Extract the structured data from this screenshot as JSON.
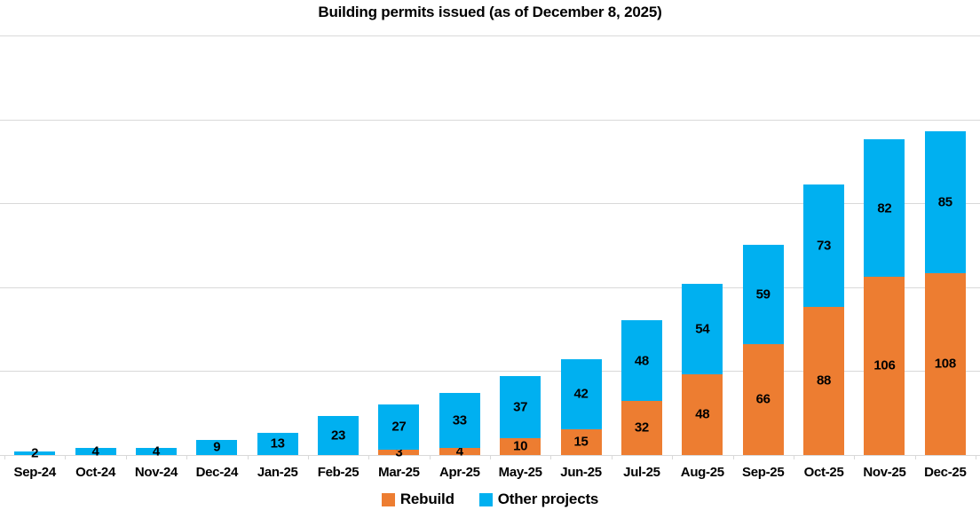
{
  "chart_data": {
    "type": "bar",
    "stacked": true,
    "title": "Building permits issued (as of December 8, 2025)",
    "categories": [
      "Sep-24",
      "Oct-24",
      "Nov-24",
      "Dec-24",
      "Jan-25",
      "Feb-25",
      "Mar-25",
      "Apr-25",
      "May-25",
      "Jun-25",
      "Jul-25",
      "Aug-25",
      "Sep-25",
      "Oct-25",
      "Nov-25",
      "Dec-25"
    ],
    "series": [
      {
        "name": "Rebuild",
        "color": "#ED7D31",
        "values": [
          0,
          0,
          0,
          0,
          0,
          0,
          3,
          4,
          10,
          15,
          32,
          48,
          66,
          88,
          106,
          108
        ]
      },
      {
        "name": "Other projects",
        "color": "#00B0F0",
        "values": [
          2,
          4,
          4,
          9,
          13,
          23,
          27,
          33,
          37,
          42,
          48,
          54,
          59,
          73,
          82,
          85
        ]
      }
    ],
    "value_labels": "inside-center",
    "xlabel": "",
    "ylabel": "",
    "ylim": [
      0,
      250
    ],
    "grid_step": 50,
    "grid": true,
    "grid_color": "#d9d9d9",
    "legend_position": "bottom"
  }
}
